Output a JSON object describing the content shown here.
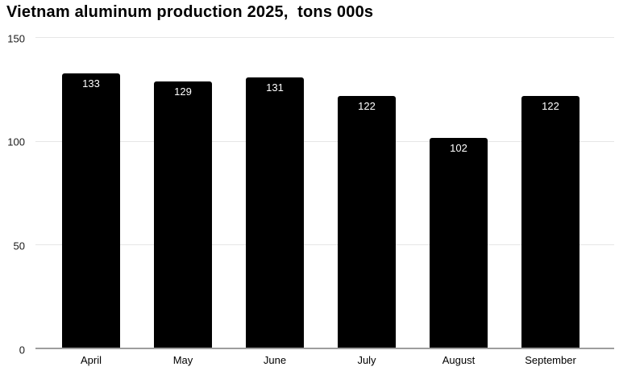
{
  "chart_data": {
    "type": "bar",
    "title": "Vietnam aluminum production 2025,  tons 000s",
    "categories": [
      "April",
      "May",
      "June",
      "July",
      "August",
      "September"
    ],
    "values": [
      133,
      129,
      131,
      122,
      102,
      122
    ],
    "xlabel": "",
    "ylabel": "",
    "ylim": [
      0,
      150
    ],
    "yticks": [
      0,
      50,
      100,
      150
    ],
    "grid": "on",
    "legend": "none",
    "bar_color": "#000000",
    "value_label_color": "#ffffff",
    "gridline_color": "#e6e6e6",
    "baseline_color": "#9e9e9e",
    "tick_label_color": "#1a1a1a"
  }
}
